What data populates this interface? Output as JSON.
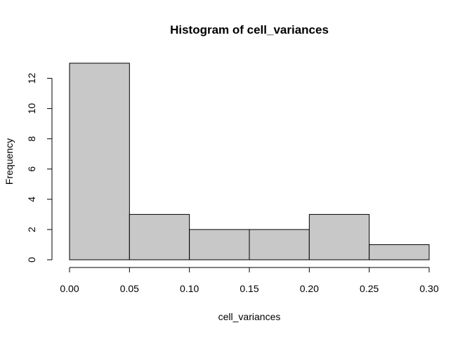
{
  "chart_data": {
    "type": "bar",
    "title": "Histogram of cell_variances",
    "xlabel": "cell_variances",
    "ylabel": "Frequency",
    "bins": [
      {
        "start": 0.0,
        "end": 0.05,
        "count": 13
      },
      {
        "start": 0.05,
        "end": 0.1,
        "count": 3
      },
      {
        "start": 0.1,
        "end": 0.15,
        "count": 2
      },
      {
        "start": 0.15,
        "end": 0.2,
        "count": 2
      },
      {
        "start": 0.2,
        "end": 0.25,
        "count": 3
      },
      {
        "start": 0.25,
        "end": 0.3,
        "count": 1
      }
    ],
    "xlim": [
      0.0,
      0.3
    ],
    "ylim": [
      0,
      13
    ],
    "x_ticks": [
      "0.00",
      "0.05",
      "0.10",
      "0.15",
      "0.20",
      "0.25",
      "0.30"
    ],
    "y_ticks": [
      "0",
      "2",
      "4",
      "6",
      "8",
      "10",
      "12"
    ],
    "bar_fill": "#c8c8c8",
    "bar_stroke": "#000000",
    "grid": false,
    "legend": "none"
  }
}
